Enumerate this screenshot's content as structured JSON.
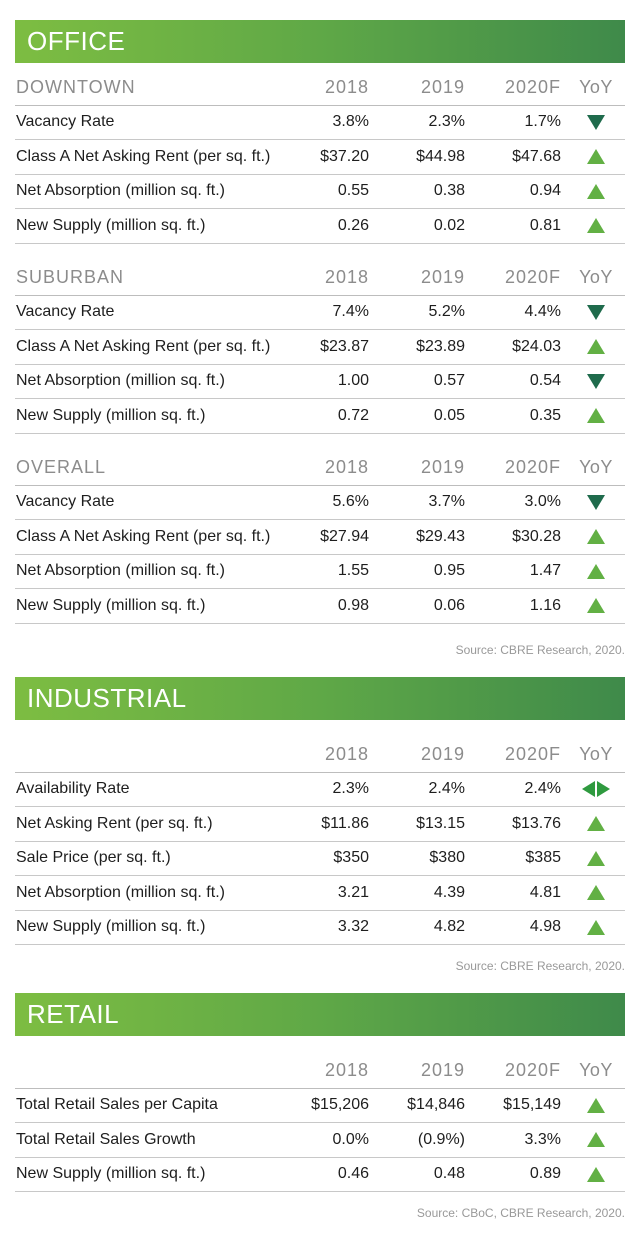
{
  "colors": {
    "up_arrow": "#62b044",
    "down_arrow": "#1f6b4c",
    "flat_arrow": "#2f9a3f",
    "banner_start": "#7dbd42",
    "banner_end": "#3f8a4a"
  },
  "office": {
    "title": "OFFICE",
    "year_headers": [
      "2018",
      "2019",
      "2020F"
    ],
    "yoy_header": "YoY",
    "sections": [
      {
        "name": "DOWNTOWN",
        "rows": [
          {
            "label": "Vacancy Rate",
            "values": [
              "3.8%",
              "2.3%",
              "1.7%"
            ],
            "trend": "down"
          },
          {
            "label": "Class A Net Asking Rent (per sq. ft.)",
            "values": [
              "$37.20",
              "$44.98",
              "$47.68"
            ],
            "trend": "up"
          },
          {
            "label": "Net Absorption (million sq. ft.)",
            "values": [
              "0.55",
              "0.38",
              "0.94"
            ],
            "trend": "up"
          },
          {
            "label": "New Supply (million sq. ft.)",
            "values": [
              "0.26",
              "0.02",
              "0.81"
            ],
            "trend": "up"
          }
        ]
      },
      {
        "name": "SUBURBAN",
        "rows": [
          {
            "label": "Vacancy Rate",
            "values": [
              "7.4%",
              "5.2%",
              "4.4%"
            ],
            "trend": "down"
          },
          {
            "label": "Class A Net Asking Rent (per sq. ft.)",
            "values": [
              "$23.87",
              "$23.89",
              "$24.03"
            ],
            "trend": "up"
          },
          {
            "label": "Net Absorption (million sq. ft.)",
            "values": [
              "1.00",
              "0.57",
              "0.54"
            ],
            "trend": "down"
          },
          {
            "label": "New Supply (million sq. ft.)",
            "values": [
              "0.72",
              "0.05",
              "0.35"
            ],
            "trend": "up"
          }
        ]
      },
      {
        "name": "OVERALL",
        "rows": [
          {
            "label": "Vacancy Rate",
            "values": [
              "5.6%",
              "3.7%",
              "3.0%"
            ],
            "trend": "down"
          },
          {
            "label": "Class A Net Asking Rent (per sq. ft.)",
            "values": [
              "$27.94",
              "$29.43",
              "$30.28"
            ],
            "trend": "up"
          },
          {
            "label": "Net Absorption (million sq. ft.)",
            "values": [
              "1.55",
              "0.95",
              "1.47"
            ],
            "trend": "up"
          },
          {
            "label": "New Supply (million sq. ft.)",
            "values": [
              "0.98",
              "0.06",
              "1.16"
            ],
            "trend": "up"
          }
        ]
      }
    ],
    "source": "Source: CBRE Research, 2020."
  },
  "industrial": {
    "title": "INDUSTRIAL",
    "year_headers": [
      "2018",
      "2019",
      "2020F"
    ],
    "yoy_header": "YoY",
    "rows": [
      {
        "label": "Availability Rate",
        "values": [
          "2.3%",
          "2.4%",
          "2.4%"
        ],
        "trend": "flat"
      },
      {
        "label": "Net Asking Rent (per sq. ft.)",
        "values": [
          "$11.86",
          "$13.15",
          "$13.76"
        ],
        "trend": "up"
      },
      {
        "label": "Sale Price (per sq. ft.)",
        "values": [
          "$350",
          "$380",
          "$385"
        ],
        "trend": "up"
      },
      {
        "label": "Net Absorption (million sq. ft.)",
        "values": [
          "3.21",
          "4.39",
          "4.81"
        ],
        "trend": "up"
      },
      {
        "label": "New Supply (million sq. ft.)",
        "values": [
          "3.32",
          "4.82",
          "4.98"
        ],
        "trend": "up"
      }
    ],
    "source": "Source: CBRE Research, 2020."
  },
  "retail": {
    "title": "RETAIL",
    "year_headers": [
      "2018",
      "2019",
      "2020F"
    ],
    "yoy_header": "YoY",
    "rows": [
      {
        "label": "Total Retail Sales per Capita",
        "values": [
          "$15,206",
          "$14,846",
          "$15,149"
        ],
        "trend": "up"
      },
      {
        "label": "Total Retail Sales Growth",
        "values": [
          "0.0%",
          "(0.9%)",
          "3.3%"
        ],
        "trend": "up"
      },
      {
        "label": "New Supply (million sq. ft.)",
        "values": [
          "0.46",
          "0.48",
          "0.89"
        ],
        "trend": "up"
      }
    ],
    "source": "Source: CBoC, CBRE Research, 2020."
  }
}
